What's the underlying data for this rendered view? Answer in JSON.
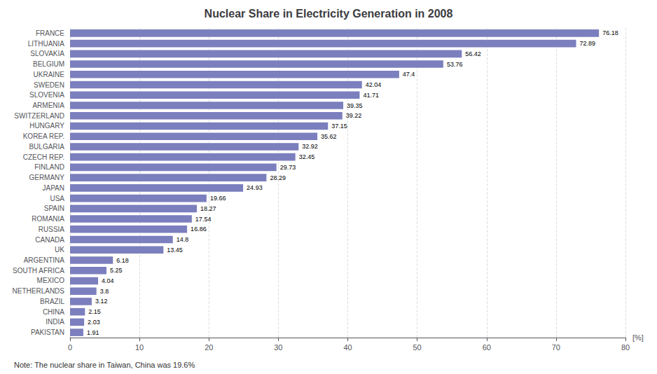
{
  "chart_data": {
    "type": "bar",
    "orientation": "horizontal",
    "title": "Nuclear Share in Electricity Generation in 2008",
    "xlabel": "[%]",
    "annotations": [
      "Note: The nuclear share in Taiwan, China was 19.6%"
    ],
    "categories": [
      "FRANCE",
      "LITHUANIA",
      "SLOVAKIA",
      "BELGIUM",
      "UKRAINE",
      "SWEDEN",
      "SLOVENIA",
      "ARMENIA",
      "SWITZERLAND",
      "HUNGARY",
      "KOREA REP.",
      "BULGARIA",
      "CZECH REP.",
      "FINLAND",
      "GERMANY",
      "JAPAN",
      "USA",
      "SPAIN",
      "ROMANIA",
      "RUSSIA",
      "CANADA",
      "UK",
      "ARGENTINA",
      "SOUTH AFRICA",
      "MEXICO",
      "NETHERLANDS",
      "BRAZIL",
      "CHINA",
      "INDIA",
      "PAKISTAN"
    ],
    "values": [
      76.18,
      72.89,
      56.42,
      53.76,
      47.4,
      42.04,
      41.71,
      39.35,
      39.22,
      37.15,
      35.62,
      32.92,
      32.45,
      29.73,
      28.29,
      24.93,
      19.66,
      18.27,
      17.54,
      16.86,
      14.8,
      13.45,
      6.18,
      5.25,
      4.04,
      3.8,
      3.12,
      2.15,
      2.03,
      1.91
    ],
    "color": "#7b7fbd",
    "xlim": [
      0,
      80
    ],
    "xticks": [
      0,
      10,
      20,
      30,
      40,
      50,
      60,
      70,
      80
    ],
    "grid": true,
    "data_labels": true
  }
}
